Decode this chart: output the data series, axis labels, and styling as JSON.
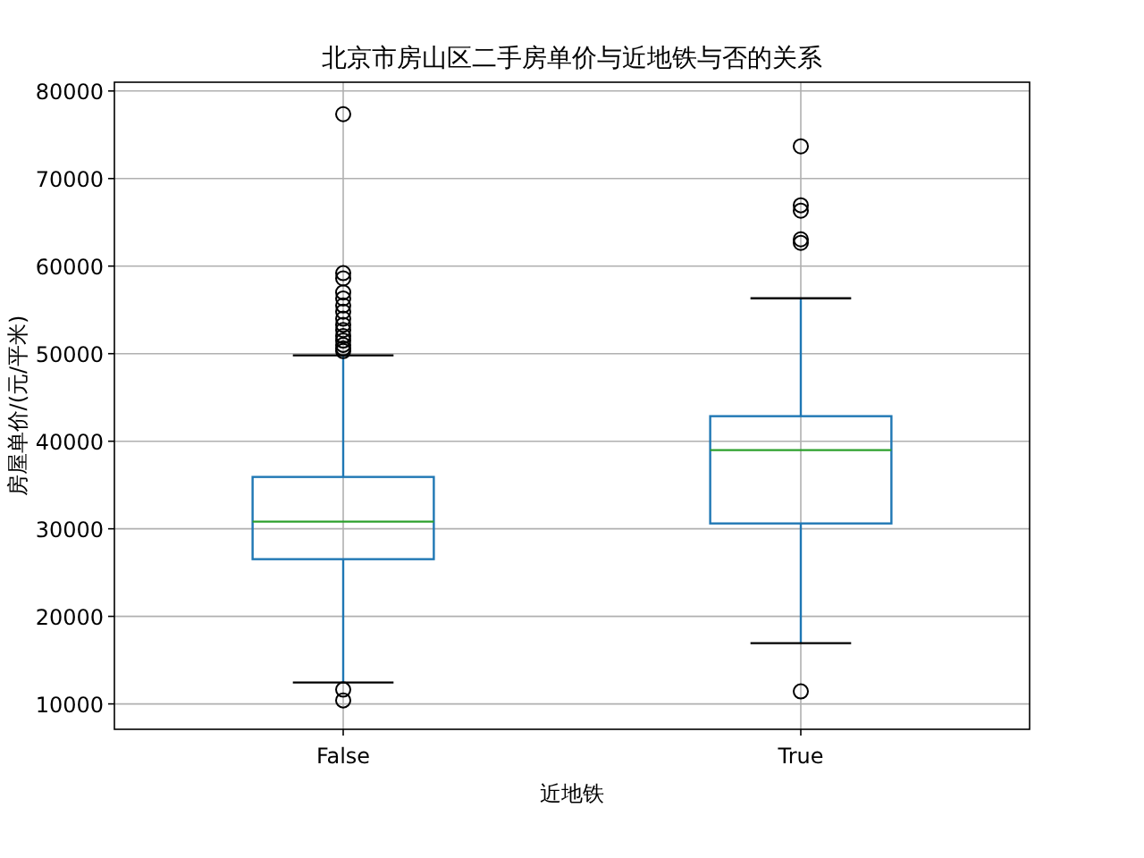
{
  "chart_data": {
    "type": "box",
    "title": "北京市房山区二手房单价与近地铁与否的关系",
    "xlabel": "近地铁",
    "ylabel": "房屋单价/(元/平米)",
    "categories": [
      "False",
      "True"
    ],
    "boxes": [
      {
        "low": 12450,
        "q1": 26530,
        "median": 30820,
        "q3": 35920,
        "high": 49800,
        "outliers": [
          11630,
          10400,
          77350,
          59200,
          58600,
          57000,
          56300,
          55500,
          54800,
          54000,
          53300,
          52700,
          52000,
          51500,
          51000,
          50600,
          50300
        ]
      },
      {
        "low": 16940,
        "q1": 30610,
        "median": 38980,
        "q3": 42860,
        "high": 56330,
        "outliers": [
          73680,
          66950,
          66330,
          63060,
          62660,
          11430
        ]
      }
    ],
    "color": "#1f77b4",
    "ylim": [
      7100,
      81000
    ],
    "yticks": [
      10000,
      20000,
      30000,
      40000,
      50000,
      60000,
      70000,
      80000
    ],
    "grid": true
  }
}
